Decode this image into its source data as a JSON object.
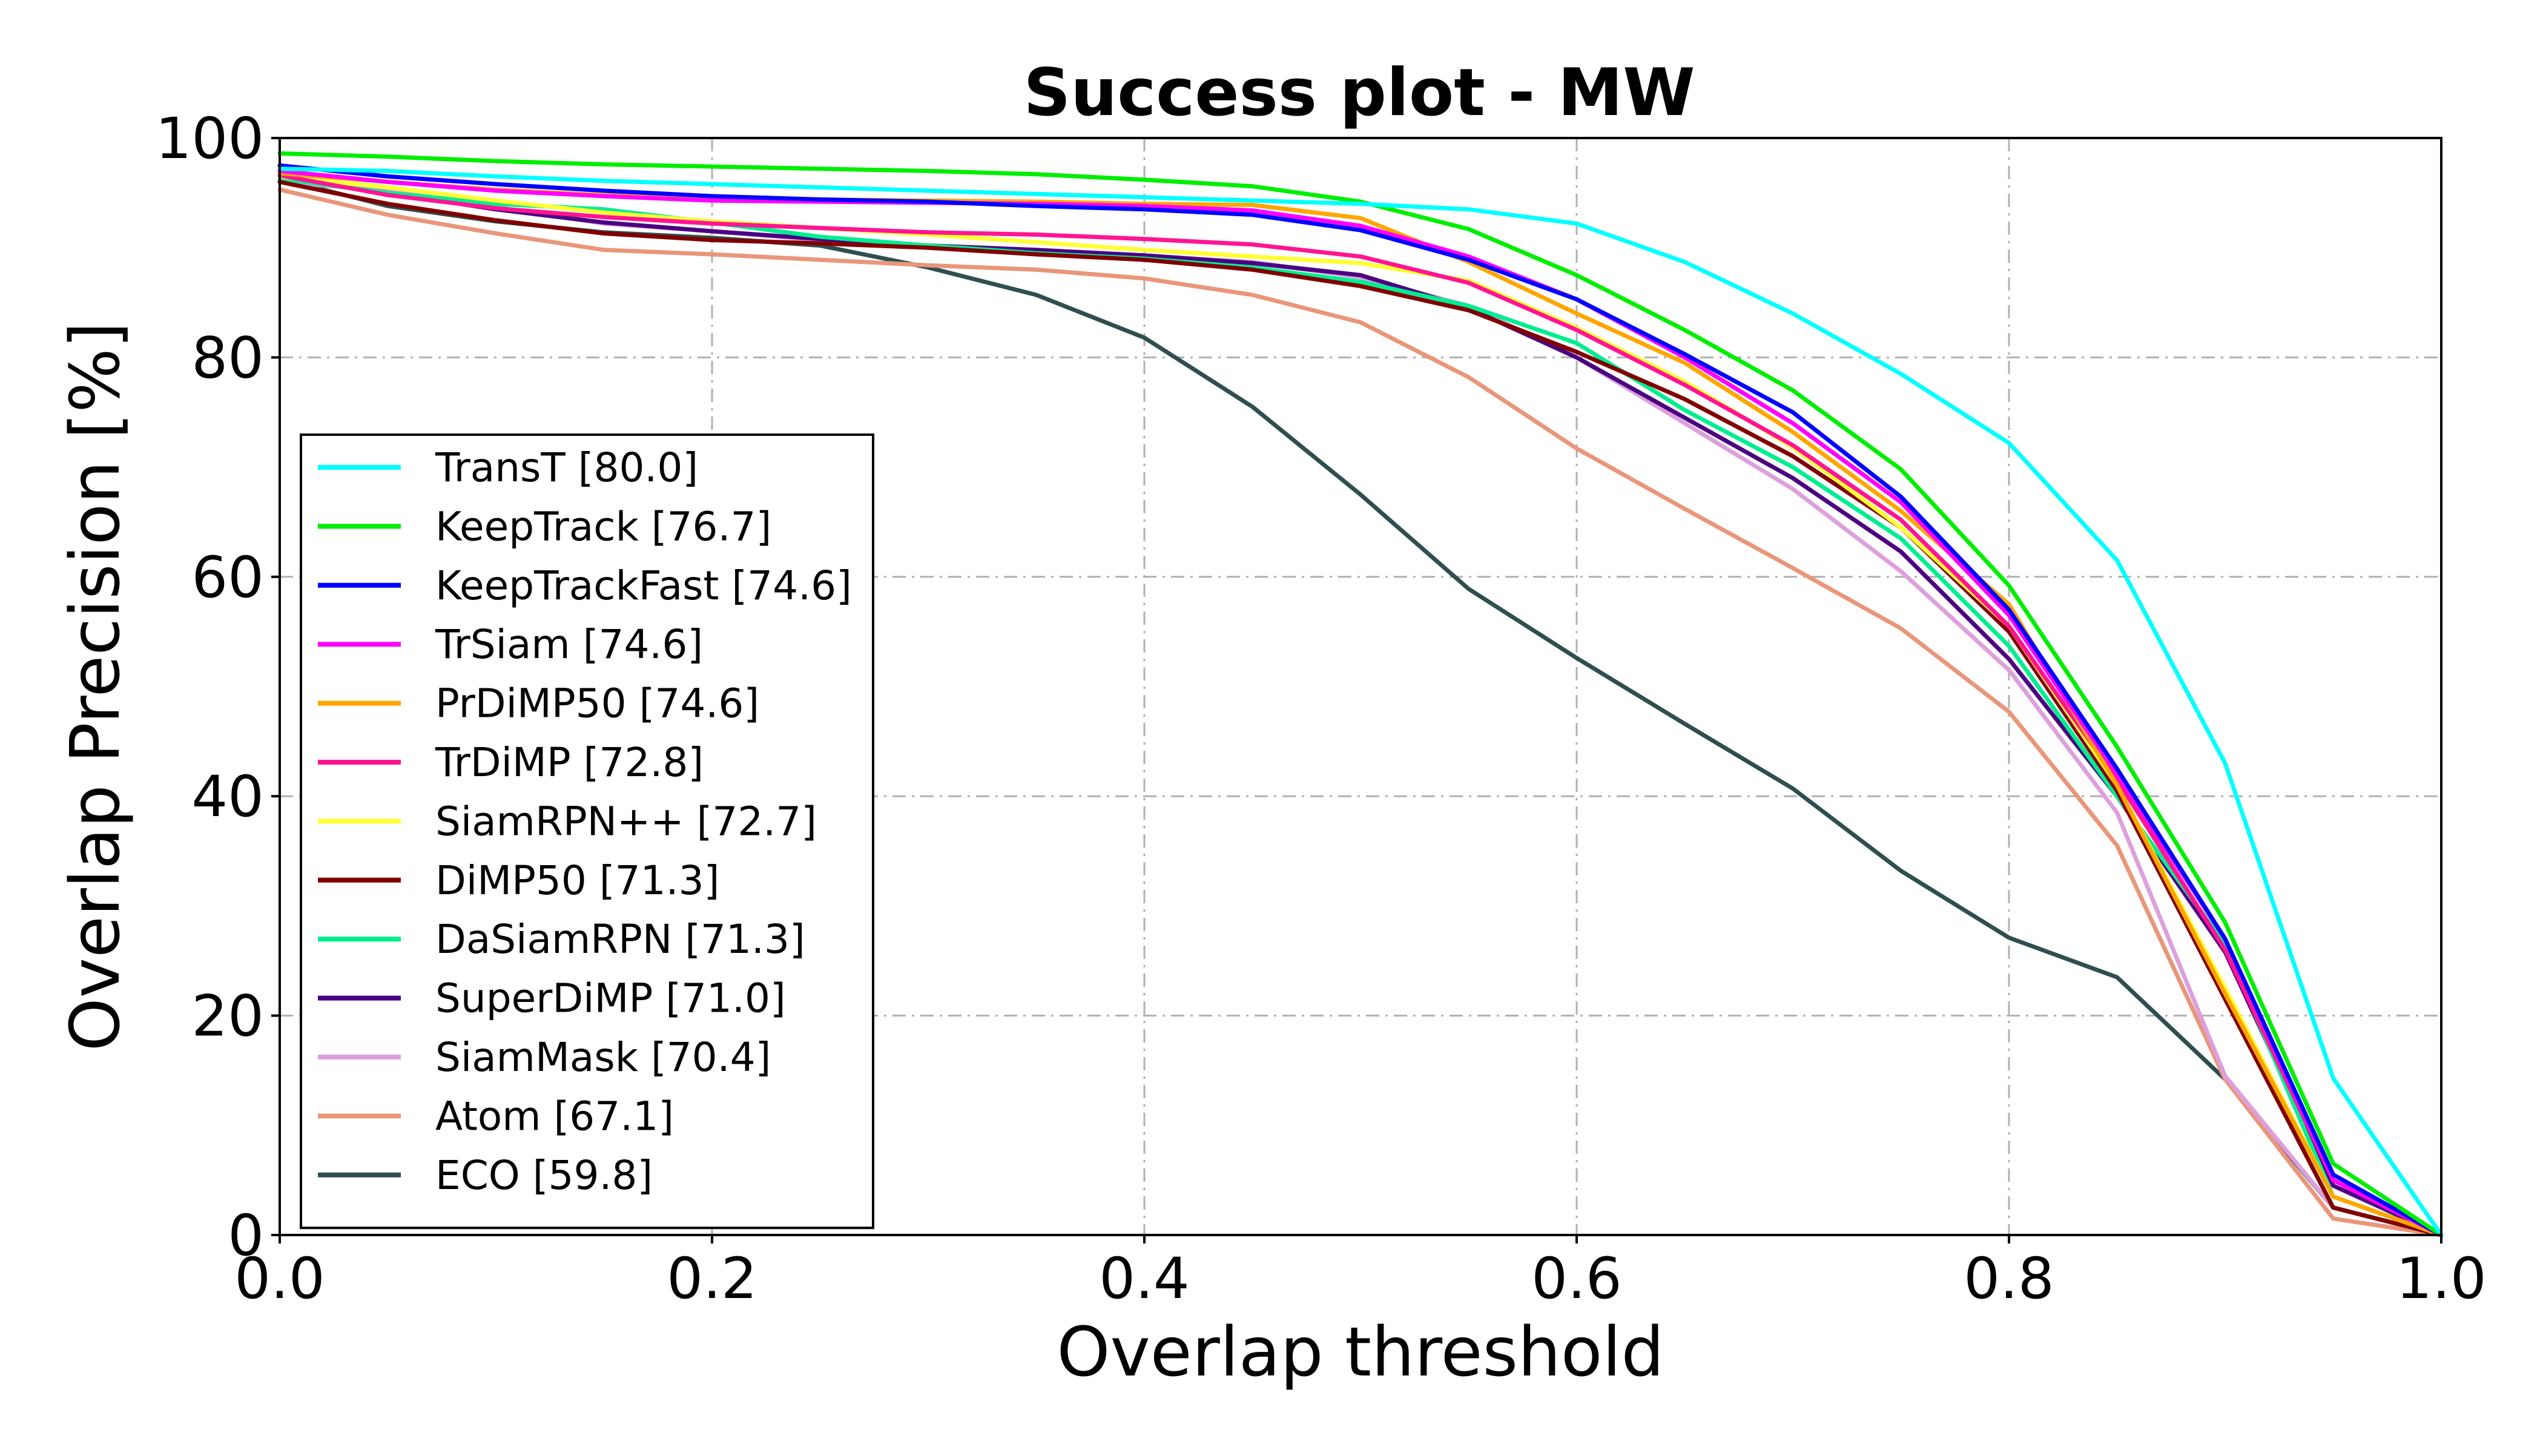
{
  "chart_data": {
    "type": "line",
    "title": "Success plot - MW",
    "xlabel": "Overlap threshold",
    "ylabel": "Overlap Precision [%]",
    "xlim": [
      0.0,
      1.0
    ],
    "ylim": [
      0,
      100
    ],
    "x_ticks": [
      "0.0",
      "0.2",
      "0.4",
      "0.6",
      "0.8",
      "1.0"
    ],
    "y_ticks": [
      "0",
      "20",
      "40",
      "60",
      "80",
      "100"
    ],
    "grid": true,
    "legend_position": "center-left",
    "x": [
      0.0,
      0.05,
      0.1,
      0.15,
      0.2,
      0.25,
      0.3,
      0.35,
      0.4,
      0.45,
      0.5,
      0.55,
      0.6,
      0.65,
      0.7,
      0.75,
      0.8,
      0.85,
      0.9,
      0.95,
      1.0
    ],
    "series": [
      {
        "name": "TransT [80.0]",
        "color": "#00ffff",
        "values": [
          97.2,
          97.0,
          96.5,
          96.1,
          95.8,
          95.5,
          95.2,
          94.9,
          94.6,
          94.3,
          94.0,
          93.5,
          92.2,
          88.7,
          84.0,
          78.5,
          72.2,
          61.5,
          43.0,
          14.3,
          0.0
        ]
      },
      {
        "name": "KeepTrack [76.7]",
        "color": "#00ee00",
        "values": [
          98.6,
          98.3,
          97.9,
          97.6,
          97.4,
          97.2,
          97.0,
          96.7,
          96.2,
          95.6,
          94.2,
          91.7,
          87.5,
          82.5,
          77.0,
          69.8,
          59.2,
          44.5,
          28.5,
          6.5,
          0.0
        ]
      },
      {
        "name": "KeepTrackFast [74.6]",
        "color": "#0000ff",
        "values": [
          97.5,
          96.5,
          95.8,
          95.2,
          94.7,
          94.4,
          94.2,
          93.8,
          93.5,
          93.0,
          91.6,
          88.9,
          85.3,
          80.3,
          75.0,
          67.3,
          57.0,
          42.5,
          27.0,
          5.5,
          0.0
        ]
      },
      {
        "name": "TrSiam [74.6]",
        "color": "#ff00ff",
        "values": [
          97.0,
          96.0,
          95.2,
          94.7,
          94.3,
          94.2,
          94.1,
          94.0,
          93.8,
          93.4,
          92.0,
          89.2,
          85.3,
          80.0,
          74.0,
          66.8,
          56.5,
          42.0,
          27.0,
          5.0,
          0.0
        ]
      },
      {
        "name": "PrDiMP50 [74.6]",
        "color": "#ffa500",
        "values": [
          96.8,
          96.0,
          95.3,
          94.8,
          94.5,
          94.4,
          94.3,
          94.2,
          94.0,
          93.9,
          92.7,
          88.7,
          84.0,
          79.5,
          73.2,
          66.0,
          57.5,
          41.0,
          22.0,
          3.5,
          0.0
        ]
      },
      {
        "name": "TrDiMP [72.8]",
        "color": "#ff1493",
        "values": [
          96.6,
          94.8,
          93.6,
          92.8,
          92.2,
          91.8,
          91.4,
          91.2,
          90.8,
          90.3,
          89.2,
          86.8,
          82.5,
          77.5,
          72.0,
          65.2,
          55.5,
          41.5,
          26.0,
          5.0,
          0.0
        ]
      },
      {
        "name": "SiamRPN++ [72.7]",
        "color": "#ffff33",
        "values": [
          96.5,
          95.5,
          94.3,
          93.2,
          92.4,
          91.8,
          91.2,
          90.5,
          89.8,
          89.2,
          88.6,
          87.0,
          82.7,
          77.8,
          71.8,
          64.5,
          55.5,
          41.0,
          22.5,
          3.5,
          0.0
        ]
      },
      {
        "name": "DiMP50 [71.3]",
        "color": "#800000",
        "values": [
          96.0,
          94.0,
          92.5,
          91.3,
          90.7,
          90.4,
          90.0,
          89.4,
          88.9,
          88.0,
          86.5,
          84.3,
          80.5,
          76.2,
          71.0,
          64.5,
          55.0,
          40.5,
          21.5,
          2.5,
          0.0
        ]
      },
      {
        "name": "DaSiamRPN [71.3]",
        "color": "#00ee90",
        "values": [
          96.3,
          95.0,
          94.0,
          93.5,
          92.3,
          91.0,
          90.2,
          89.5,
          89.0,
          88.2,
          86.9,
          84.7,
          81.3,
          75.2,
          70.0,
          63.5,
          53.7,
          40.0,
          26.5,
          3.5,
          0.0
        ]
      },
      {
        "name": "SuperDiMP [71.0]",
        "color": "#4b0082",
        "values": [
          96.3,
          95.0,
          93.5,
          92.3,
          91.5,
          90.8,
          90.2,
          89.8,
          89.3,
          88.6,
          87.5,
          84.5,
          80.0,
          74.5,
          69.0,
          62.3,
          52.5,
          40.0,
          25.8,
          4.5,
          0.0
        ]
      },
      {
        "name": "SiamMask [70.4]",
        "color": "#dda0dd",
        "values": [
          96.0,
          95.2,
          93.7,
          92.2,
          91.5,
          90.7,
          90.2,
          89.7,
          89.3,
          88.7,
          87.3,
          84.7,
          80.0,
          74.0,
          68.0,
          60.5,
          51.5,
          38.5,
          14.5,
          2.5,
          0.0
        ]
      },
      {
        "name": "Atom [67.1]",
        "color": "#e9967a",
        "values": [
          95.3,
          93.0,
          91.3,
          89.8,
          89.4,
          88.9,
          88.4,
          88.0,
          87.2,
          85.7,
          83.2,
          78.2,
          71.7,
          66.2,
          60.8,
          55.3,
          47.7,
          35.5,
          14.2,
          1.5,
          0.0
        ]
      },
      {
        "name": "ECO [59.8]",
        "color": "#2f4f4f",
        "values": [
          96.3,
          93.8,
          92.4,
          91.4,
          90.9,
          90.2,
          88.2,
          85.7,
          81.8,
          75.5,
          67.5,
          58.9,
          52.6,
          46.6,
          40.7,
          33.2,
          27.1,
          23.5,
          14.2,
          2.5,
          0.0
        ]
      }
    ]
  }
}
